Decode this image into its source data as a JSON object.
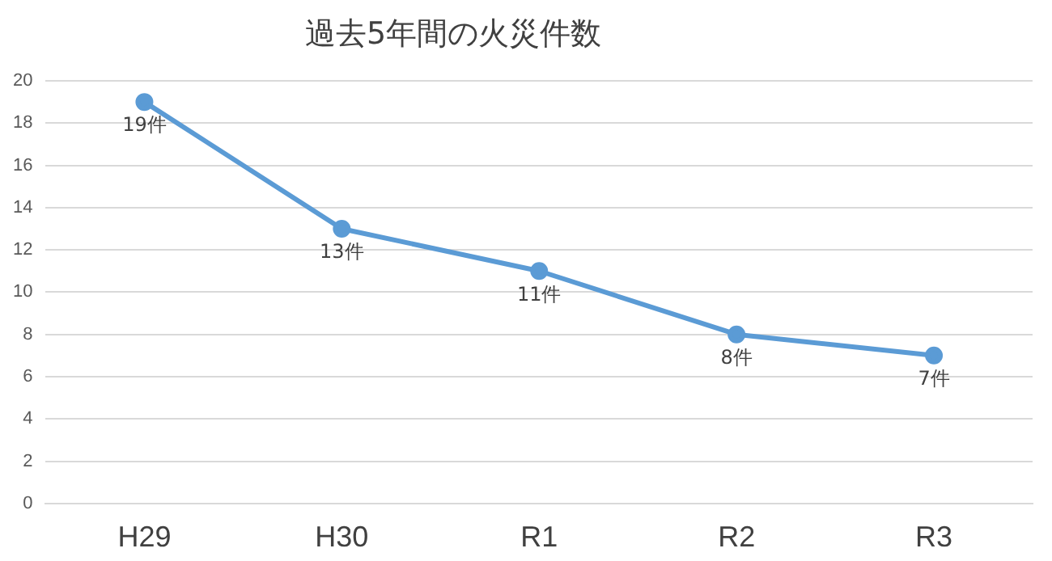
{
  "chart_data": {
    "type": "line",
    "title": "過去5年間の火災件数",
    "categories": [
      "H29",
      "H30",
      "R1",
      "R2",
      "R3"
    ],
    "series": [
      {
        "color": "#5b9bd5",
        "values": [
          19,
          13,
          11,
          8,
          7
        ],
        "value_labels": [
          "19件",
          "13件",
          "11件",
          "8件",
          "7件"
        ]
      }
    ],
    "ylim": [
      0,
      20
    ],
    "yticks": [
      0,
      2,
      4,
      6,
      8,
      10,
      12,
      14,
      16,
      18,
      20
    ],
    "grid": "y",
    "marker": "circle",
    "line_style": "solid",
    "legend": false
  }
}
